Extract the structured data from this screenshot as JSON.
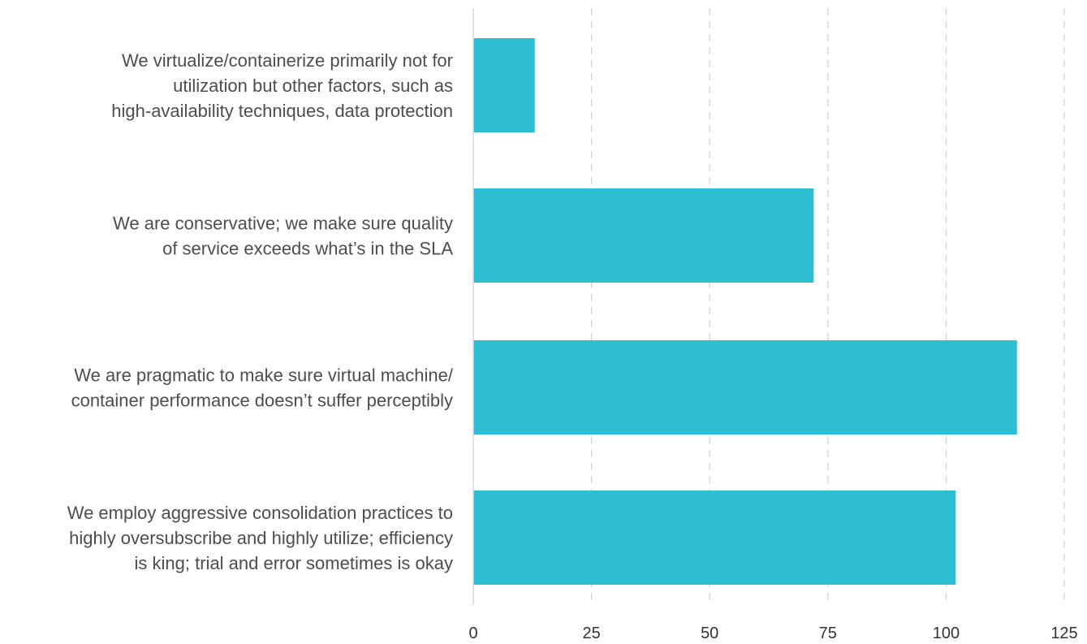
{
  "chart_data": {
    "type": "bar",
    "orientation": "horizontal",
    "title": "",
    "xlabel": "",
    "ylabel": "",
    "categories": [
      "We virtualize/containerize primarily not for utilization but other factors, such as high-availability techniques, data protection",
      "We are conservative; we make sure quality of service exceeds what’s in the SLA",
      "We are pragmatic to make sure virtual machine/ container performance doesn’t suffer perceptibly",
      "We employ aggressive consolidation practices to highly oversubscribe and highly utilize; efficiency is king; trial and error sometimes is okay"
    ],
    "category_lines": [
      [
        "We virtualize/containerize primarily not for",
        "utilization but other factors, such as",
        "high-availability techniques, data protection"
      ],
      [
        "We are conservative; we make sure quality",
        "of service exceeds what’s in the SLA"
      ],
      [
        "We are pragmatic to make sure virtual machine/",
        "container performance doesn’t suffer perceptibly"
      ],
      [
        "We employ aggressive consolidation practices to",
        "highly oversubscribe and highly utilize; efficiency",
        "is king; trial and error sometimes is okay"
      ]
    ],
    "values": [
      13,
      72,
      115,
      102
    ],
    "xlim": [
      0,
      125
    ],
    "xticks": [
      "0",
      "25",
      "50",
      "75",
      "100",
      "125"
    ],
    "grid": "vertical-dashed",
    "legend": "none",
    "bar_color": "#2ebed3",
    "grid_color": "#d0d0d0",
    "axis_color": "#d9d9d9",
    "label_color": "#4d4d4d"
  }
}
